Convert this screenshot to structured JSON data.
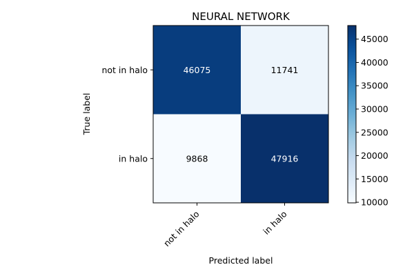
{
  "chart_data": {
    "type": "heatmap",
    "title": "NEURAL NETWORK",
    "xlabel": "Predicted label",
    "ylabel": "True label",
    "x_categories": [
      "not in halo",
      "in halo"
    ],
    "y_categories": [
      "not in halo",
      "in halo"
    ],
    "values": [
      [
        46075,
        11741
      ],
      [
        9868,
        47916
      ]
    ],
    "colormap": "Blues",
    "color_range": [
      9868,
      47916
    ],
    "colorbar_ticks": [
      10000,
      15000,
      20000,
      25000,
      30000,
      35000,
      40000,
      45000
    ],
    "colorbar_min_color": "#f7fbff",
    "colorbar_max_color": "#08306b",
    "grid": false
  }
}
